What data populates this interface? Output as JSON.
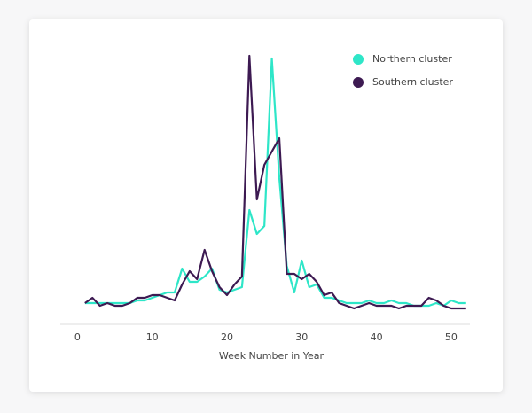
{
  "chart_data": {
    "type": "line",
    "xlabel": "Week Number in Year",
    "x": [
      1,
      2,
      3,
      4,
      5,
      6,
      7,
      8,
      9,
      10,
      11,
      12,
      13,
      14,
      15,
      16,
      17,
      18,
      19,
      20,
      21,
      22,
      23,
      24,
      25,
      26,
      27,
      28,
      29,
      30,
      31,
      32,
      33,
      34,
      35,
      36,
      37,
      38,
      39,
      40,
      41,
      42,
      43,
      44,
      45,
      46,
      47,
      48,
      49,
      50,
      51,
      52
    ],
    "series": [
      {
        "name": "Northern cluster",
        "color": "#2ee6c8",
        "values": [
          8,
          8,
          8,
          8,
          8,
          8,
          8,
          9,
          9,
          10,
          11,
          12,
          12,
          21,
          16,
          16,
          18,
          21,
          13,
          12,
          13,
          14,
          43,
          34,
          37,
          100,
          55,
          22,
          12,
          24,
          14,
          15,
          10,
          10,
          9,
          8,
          8,
          8,
          9,
          8,
          8,
          9,
          8,
          8,
          7,
          7,
          7,
          8,
          7,
          9,
          8,
          8
        ]
      },
      {
        "name": "Southern cluster",
        "color": "#3d1a52",
        "values": [
          8,
          10,
          7,
          8,
          7,
          7,
          8,
          10,
          10,
          11,
          11,
          10,
          9,
          15,
          20,
          17,
          28,
          20,
          14,
          11,
          15,
          18,
          101,
          47,
          60,
          65,
          70,
          19,
          19,
          17,
          19,
          16,
          11,
          12,
          8,
          7,
          6,
          7,
          8,
          7,
          7,
          7,
          6,
          7,
          7,
          7,
          10,
          9,
          7,
          6,
          6,
          6
        ]
      }
    ],
    "xlim": [
      -2.3,
      52.5
    ],
    "xticks": [
      0,
      10,
      20,
      30,
      40,
      50
    ],
    "ylim": [
      0,
      102
    ],
    "legend": "top-right"
  }
}
